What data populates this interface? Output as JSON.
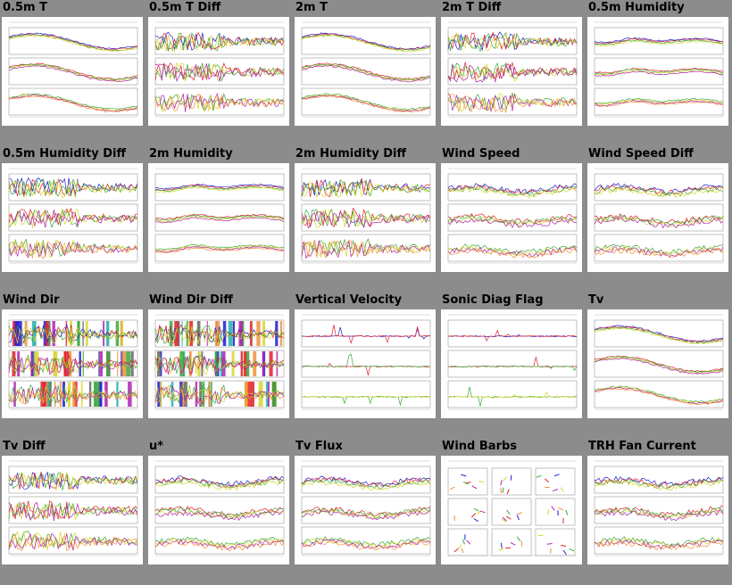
{
  "page": {
    "background": "#8c8c8c"
  },
  "panels": [
    {
      "title": "0.5m T",
      "kind": "line"
    },
    {
      "title": "0.5m T Diff",
      "kind": "noisy"
    },
    {
      "title": "2m T",
      "kind": "line"
    },
    {
      "title": "2m T Diff",
      "kind": "noisy"
    },
    {
      "title": "0.5m Humidity",
      "kind": "hump"
    },
    {
      "title": "0.5m Humidity Diff",
      "kind": "noisy"
    },
    {
      "title": "2m Humidity",
      "kind": "hump"
    },
    {
      "title": "2m Humidity Diff",
      "kind": "noisy"
    },
    {
      "title": "Wind Speed",
      "kind": "flat"
    },
    {
      "title": "Wind Speed Diff",
      "kind": "flat"
    },
    {
      "title": "Wind Dir",
      "kind": "bars"
    },
    {
      "title": "Wind Dir Diff",
      "kind": "bars"
    },
    {
      "title": "Vertical Velocity",
      "kind": "sparse"
    },
    {
      "title": "Sonic Diag Flag",
      "kind": "sparse"
    },
    {
      "title": "Tv",
      "kind": "line"
    },
    {
      "title": "Tv Diff",
      "kind": "noisy"
    },
    {
      "title": "u*",
      "kind": "flat"
    },
    {
      "title": "Tv Flux",
      "kind": "flat"
    },
    {
      "title": "Wind Barbs",
      "kind": "barbs"
    },
    {
      "title": "TRH Fan Current",
      "kind": "flat"
    }
  ],
  "series_colors": [
    "#1f1fd0",
    "#e0202a",
    "#3aa83a",
    "#d6d630",
    "#b020b0",
    "#f0903a",
    "#20b0b0",
    "#666666"
  ]
}
